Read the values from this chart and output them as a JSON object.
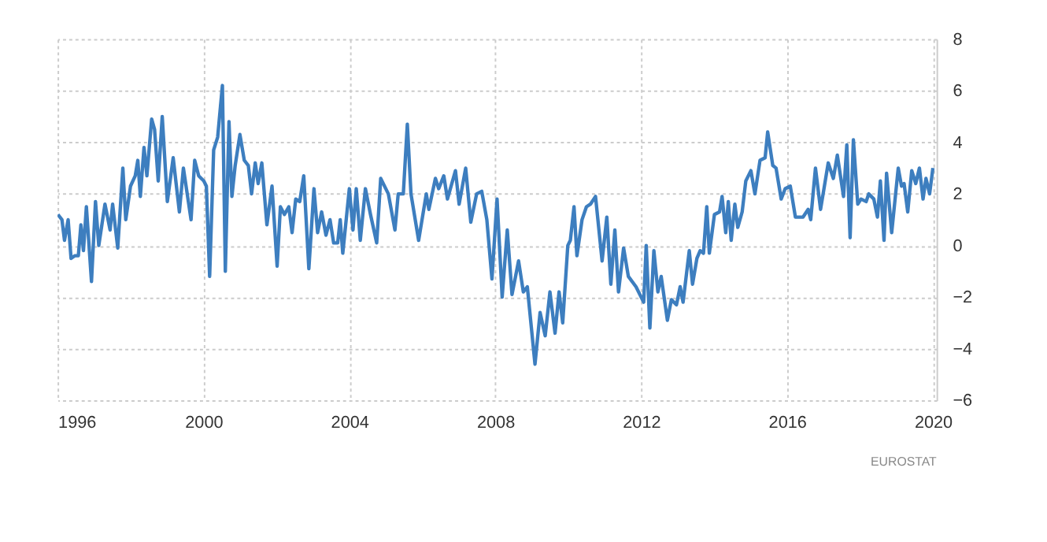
{
  "chart_data": {
    "type": "line",
    "x": [
      1996.01,
      1996.12,
      1996.19,
      1996.29,
      1996.37,
      1996.47,
      1996.57,
      1996.64,
      1996.71,
      1996.79,
      1996.93,
      1997.04,
      1997.13,
      1997.3,
      1997.44,
      1997.51,
      1997.65,
      1997.79,
      1997.87,
      1998.0,
      1998.13,
      1998.2,
      1998.27,
      1998.37,
      1998.45,
      1998.58,
      1998.66,
      1998.76,
      1998.87,
      1999.01,
      1999.17,
      1999.34,
      1999.45,
      1999.66,
      1999.76,
      1999.87,
      2000.01,
      2000.08,
      2000.17,
      2000.28,
      2000.39,
      2000.52,
      2000.6,
      2000.7,
      2000.78,
      2000.87,
      2001.0,
      2001.12,
      2001.23,
      2001.32,
      2001.42,
      2001.5,
      2001.6,
      2001.74,
      2001.88,
      2002.02,
      2002.11,
      2002.22,
      2002.34,
      2002.43,
      2002.53,
      2002.64,
      2002.75,
      2002.89,
      2003.03,
      2003.13,
      2003.24,
      2003.36,
      2003.47,
      2003.57,
      2003.68,
      2003.75,
      2003.82,
      2004.0,
      2004.1,
      2004.19,
      2004.3,
      2004.44,
      2004.58,
      2004.75,
      2004.86,
      2005.07,
      2005.25,
      2005.34,
      2005.48,
      2005.59,
      2005.69,
      2005.9,
      2006.11,
      2006.18,
      2006.36,
      2006.45,
      2006.59,
      2006.69,
      2006.91,
      2007.01,
      2007.19,
      2007.33,
      2007.49,
      2007.63,
      2007.77,
      2007.91,
      2008.05,
      2008.19,
      2008.33,
      2008.46,
      2008.64,
      2008.77,
      2008.88,
      2009.09,
      2009.23,
      2009.37,
      2009.5,
      2009.64,
      2009.75,
      2009.85,
      2009.99,
      2010.06,
      2010.16,
      2010.24,
      2010.38,
      2010.5,
      2010.61,
      2010.75,
      2010.93,
      2011.06,
      2011.17,
      2011.28,
      2011.38,
      2011.52,
      2011.65,
      2011.86,
      2012.07,
      2012.14,
      2012.24,
      2012.35,
      2012.46,
      2012.55,
      2012.72,
      2012.83,
      2012.97,
      2013.07,
      2013.15,
      2013.32,
      2013.41,
      2013.53,
      2013.62,
      2013.71,
      2013.8,
      2013.87,
      2014.01,
      2014.15,
      2014.22,
      2014.32,
      2014.39,
      2014.47,
      2014.57,
      2014.65,
      2014.77,
      2014.87,
      2015.01,
      2015.12,
      2015.26,
      2015.4,
      2015.47,
      2015.61,
      2015.7,
      2015.84,
      2015.95,
      2016.09,
      2016.23,
      2016.44,
      2016.58,
      2016.65,
      2016.78,
      2016.92,
      2017.13,
      2017.27,
      2017.38,
      2017.55,
      2017.64,
      2017.73,
      2017.82,
      2017.94,
      2018.03,
      2018.17,
      2018.24,
      2018.38,
      2018.48,
      2018.56,
      2018.66,
      2018.73,
      2018.87,
      2019.05,
      2019.14,
      2019.21,
      2019.31,
      2019.42,
      2019.53,
      2019.63,
      2019.73,
      2019.81,
      2019.91,
      2020.0
    ],
    "series": [
      {
        "color": "#3d7ebf",
        "values": [
          1.2,
          1.0,
          0.2,
          1.0,
          -0.5,
          -0.4,
          -0.4,
          0.8,
          -0.2,
          1.5,
          -1.4,
          1.7,
          0.0,
          1.6,
          0.6,
          1.6,
          -0.1,
          3.0,
          1.0,
          2.3,
          2.7,
          3.3,
          1.9,
          3.8,
          2.7,
          4.9,
          4.5,
          2.5,
          5.0,
          1.7,
          3.4,
          1.3,
          3.0,
          1.0,
          3.3,
          2.7,
          2.5,
          2.3,
          -1.2,
          3.7,
          4.2,
          6.2,
          -1.0,
          4.8,
          1.9,
          3.1,
          4.3,
          3.3,
          3.1,
          2.0,
          3.2,
          2.4,
          3.2,
          0.8,
          2.3,
          -0.8,
          1.5,
          1.2,
          1.5,
          0.5,
          1.8,
          1.7,
          2.7,
          -0.9,
          2.2,
          0.5,
          1.3,
          0.4,
          1.0,
          0.1,
          0.1,
          1.0,
          -0.3,
          2.2,
          0.6,
          2.2,
          0.2,
          2.2,
          1.2,
          0.1,
          2.6,
          2.0,
          0.6,
          2.0,
          2.0,
          4.7,
          2.0,
          0.2,
          2.0,
          1.4,
          2.6,
          2.2,
          2.7,
          1.8,
          2.9,
          1.6,
          3.0,
          0.9,
          2.0,
          2.1,
          1.0,
          -1.3,
          1.8,
          -2.0,
          0.6,
          -1.9,
          -0.6,
          -1.8,
          -1.6,
          -4.6,
          -2.6,
          -3.5,
          -1.8,
          -3.4,
          -1.8,
          -3.0,
          0.0,
          0.2,
          1.5,
          -0.4,
          1.0,
          1.5,
          1.6,
          1.9,
          -0.6,
          1.1,
          -1.5,
          0.6,
          -1.8,
          -0.1,
          -1.2,
          -1.6,
          -2.2,
          0.0,
          -3.2,
          -0.2,
          -1.8,
          -1.2,
          -2.9,
          -2.1,
          -2.3,
          -1.6,
          -2.2,
          -0.2,
          -1.5,
          -0.5,
          -0.2,
          -0.3,
          1.5,
          -0.3,
          1.2,
          1.3,
          1.9,
          0.5,
          1.7,
          0.2,
          1.6,
          0.7,
          1.3,
          2.5,
          2.9,
          2.0,
          3.3,
          3.4,
          4.4,
          3.1,
          3.0,
          1.8,
          2.2,
          2.3,
          1.1,
          1.1,
          1.4,
          1.0,
          3.0,
          1.4,
          3.2,
          2.6,
          3.5,
          1.9,
          3.9,
          0.3,
          4.1,
          1.6,
          1.8,
          1.7,
          2.0,
          1.8,
          1.1,
          2.5,
          0.2,
          2.8,
          0.5,
          3.0,
          2.3,
          2.4,
          1.3,
          2.9,
          2.4,
          3.0,
          1.8,
          2.6,
          2.0,
          3.0
        ]
      }
    ],
    "xlim": [
      1996,
      2020.1
    ],
    "xticks": [
      1996,
      2000,
      2004,
      2008,
      2012,
      2016,
      2020
    ],
    "ylim": [
      -6,
      8
    ],
    "yticks": [
      -6,
      -4,
      -2,
      0,
      2,
      4,
      6,
      8
    ],
    "grid": true,
    "line_style": "solid",
    "marker": "none",
    "annotations": [
      "EUROSTAT"
    ]
  }
}
